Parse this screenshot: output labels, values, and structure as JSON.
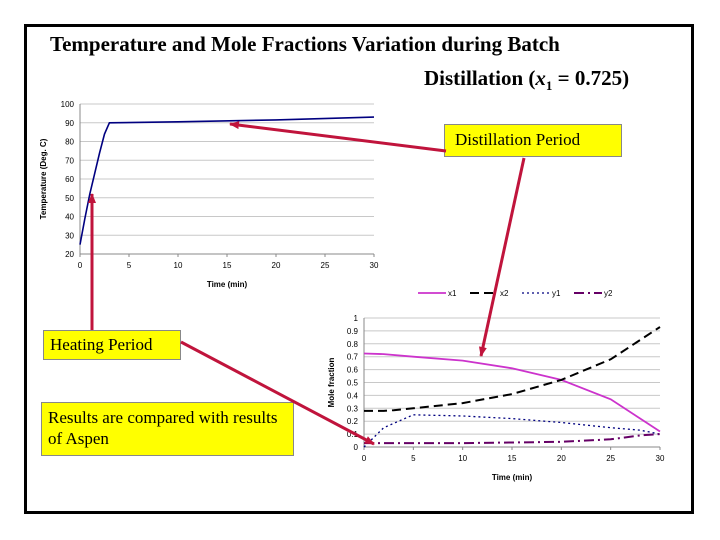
{
  "slide": {
    "title_line1": "Temperature and Mole Fractions Variation during Batch",
    "title_line2_prefix": "Distillation (",
    "title_line2_var": "x",
    "title_line2_sub": "1",
    "title_line2_suffix": " = 0.725)"
  },
  "callouts": {
    "distillation": "Distillation  Period",
    "heating": "Heating Period",
    "results": "Results are compared with results of Aspen"
  },
  "colors": {
    "arrow": "#c0143c",
    "callout_bg": "#ffff00",
    "temp_line": "#000080",
    "x1": "#cc33cc",
    "x2": "#000000",
    "y1": "#000080",
    "y2": "#660066"
  },
  "chart_data": [
    {
      "type": "line",
      "title": "",
      "xlabel": "Time (min)",
      "ylabel": "Temperature (Deg. C)",
      "xlim": [
        0,
        30
      ],
      "ylim": [
        20,
        100
      ],
      "x_ticks": [
        0,
        5,
        10,
        15,
        20,
        25,
        30
      ],
      "y_ticks": [
        20,
        30,
        40,
        50,
        60,
        70,
        80,
        90,
        100
      ],
      "grid": true,
      "series": [
        {
          "name": "Temperature",
          "x": [
            0,
            0.5,
            1.0,
            1.5,
            2.0,
            2.5,
            3.0,
            10,
            20,
            30
          ],
          "y": [
            25,
            39,
            52,
            63,
            74,
            84,
            90,
            90.5,
            91.5,
            93
          ]
        }
      ]
    },
    {
      "type": "line",
      "title": "",
      "xlabel": "Time (min)",
      "ylabel": "Mole fraction",
      "xlim": [
        0,
        30
      ],
      "ylim": [
        0,
        1
      ],
      "x_ticks": [
        0,
        5,
        10,
        15,
        20,
        25,
        30
      ],
      "y_ticks": [
        0,
        0.1,
        0.2,
        0.3,
        0.4,
        0.5,
        0.6,
        0.7,
        0.8,
        0.9,
        1
      ],
      "y_tick_labels": [
        "0",
        "0.1",
        "0.2",
        "0.3",
        "0.4",
        "0.5",
        "0.6",
        "0.7",
        "0.8",
        "0.9",
        "1"
      ],
      "grid": true,
      "legend": {
        "position": "top",
        "entries": [
          "x1",
          "x2",
          "y1",
          "y2"
        ]
      },
      "series": [
        {
          "name": "x1",
          "style": "solid",
          "x": [
            0,
            2,
            5,
            10,
            15,
            20,
            25,
            28,
            30
          ],
          "y": [
            0.725,
            0.72,
            0.7,
            0.67,
            0.61,
            0.52,
            0.37,
            0.22,
            0.12
          ]
        },
        {
          "name": "x2",
          "style": "dashed",
          "x": [
            0,
            2,
            3,
            5,
            10,
            15,
            20,
            25,
            30
          ],
          "y": [
            0.28,
            0.28,
            0.285,
            0.3,
            0.34,
            0.41,
            0.52,
            0.68,
            0.93
          ]
        },
        {
          "name": "y1",
          "style": "dotted",
          "x": [
            0,
            2,
            5,
            10,
            15,
            20,
            25,
            28,
            30
          ],
          "y": [
            0.0,
            0.15,
            0.25,
            0.24,
            0.22,
            0.19,
            0.15,
            0.13,
            0.1
          ]
        },
        {
          "name": "y2",
          "style": "dashdot",
          "x": [
            0,
            3,
            5,
            10,
            15,
            20,
            25,
            28,
            30
          ],
          "y": [
            0.03,
            0.03,
            0.03,
            0.03,
            0.035,
            0.04,
            0.06,
            0.09,
            0.1
          ]
        }
      ]
    }
  ]
}
